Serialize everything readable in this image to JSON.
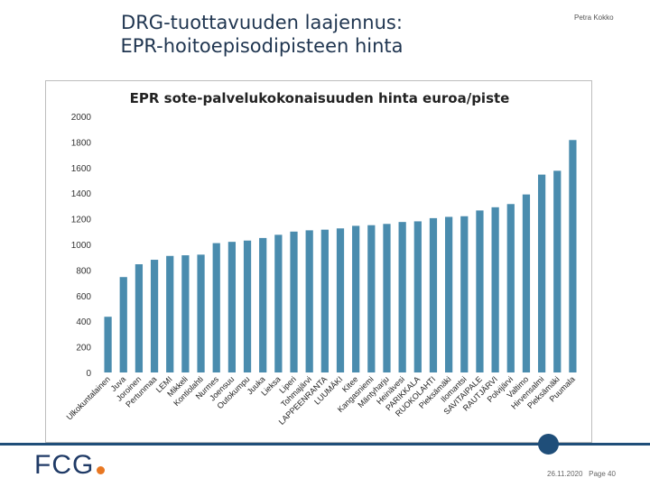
{
  "slide": {
    "title": "DRG-tuottavuuden laajennus: EPR-hoitoepisodipisteen hinta",
    "author": "Petra Kokko",
    "date": "26.11.2020",
    "page": "Page 40",
    "logo": "FCG"
  },
  "colors": {
    "bar": "#4a8cae",
    "title": "#1f3550",
    "accent": "#e87722",
    "brand": "#1f4e79"
  },
  "chart_data": {
    "type": "bar",
    "title": "EPR sote-palvelukokonaisuuden hinta euroa/piste",
    "xlabel": "",
    "ylabel": "",
    "ylim": [
      0,
      2000
    ],
    "yticks": [
      0,
      200,
      400,
      600,
      800,
      1000,
      1200,
      1400,
      1600,
      1800,
      2000
    ],
    "grid": false,
    "categories": [
      "Ulkokuntalainen",
      "Juva",
      "Joroinen",
      "Pertunmaa",
      "LEMI",
      "Mikkeli",
      "Kontiolahti",
      "Nurmes",
      "Joensuu",
      "Outokumpu",
      "Juuka",
      "Lieksa",
      "Liperi",
      "Tohmajärvi",
      "LAPPEENRANTA",
      "LUUMÄKI",
      "Kitee",
      "Kangasniemi",
      "Mäntyharju",
      "Heinävesi",
      "PARIKKALA",
      "RUOKOLAHTI",
      "Pieksämäki",
      "Ilomantsi",
      "SAVITAIPALE",
      "RAUTJÄRVI",
      "Polvijärvi",
      "Valtimo",
      "Hirvensalmi",
      "Pieksämäki",
      "Puumala"
    ],
    "values": [
      435,
      745,
      845,
      880,
      910,
      915,
      920,
      1010,
      1020,
      1030,
      1050,
      1075,
      1100,
      1110,
      1115,
      1125,
      1145,
      1150,
      1160,
      1175,
      1180,
      1205,
      1215,
      1220,
      1265,
      1290,
      1315,
      1390,
      1545,
      1575,
      1815
    ]
  }
}
